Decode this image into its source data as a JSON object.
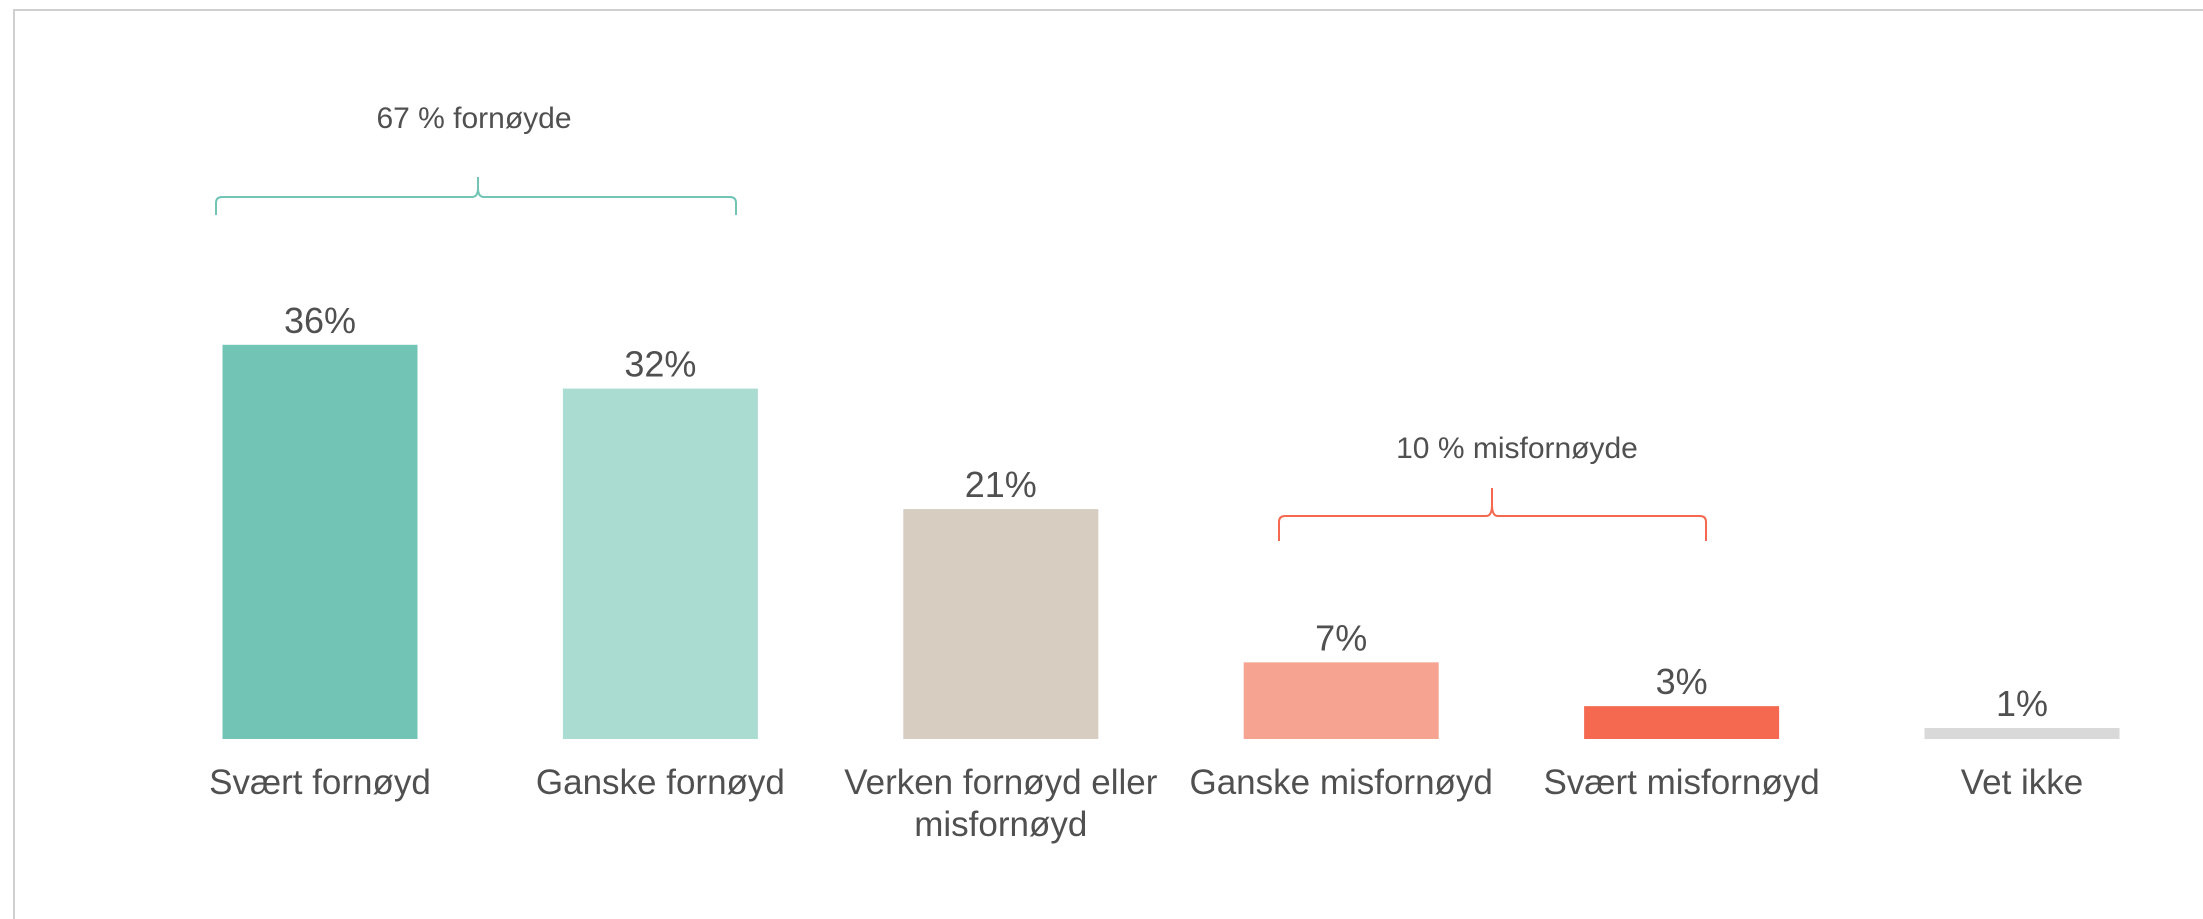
{
  "chart_data": {
    "type": "bar",
    "categories": [
      "Svært fornøyd",
      "Ganske fornøyd",
      "Verken fornøyd eller misfornøyd",
      "Ganske misfornøyd",
      "Svært misfornøyd",
      "Vet ikke"
    ],
    "values": [
      36,
      32,
      21,
      7,
      3,
      1
    ],
    "value_labels": [
      "36%",
      "32%",
      "21%",
      "7%",
      "3%",
      "1%"
    ],
    "colors": [
      "#72c4b4",
      "#aadcd2",
      "#d7cec1",
      "#f6a491",
      "#f4694f",
      "#d9d9d9"
    ],
    "annotations": [
      {
        "text": "67 % fornøyde"
      },
      {
        "text": "10 % misfornøyde"
      }
    ]
  }
}
